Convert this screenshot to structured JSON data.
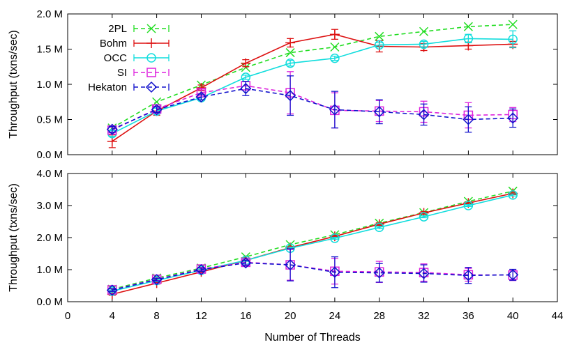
{
  "chart_data": [
    {
      "type": "line",
      "panel": "top",
      "ylabel": "Throughput (txns/sec)",
      "ylim": [
        0,
        2000000
      ],
      "yticks": [
        0,
        500000,
        1000000,
        1500000,
        2000000
      ],
      "ytick_labels": [
        "0.0 M",
        "0.5 M",
        "1.0 M",
        "1.5 M",
        "2.0 M"
      ],
      "xlim": [
        0,
        44
      ],
      "x": [
        4,
        8,
        12,
        16,
        20,
        24,
        28,
        32,
        36,
        40
      ],
      "grid": false,
      "legend_position": "top-left",
      "series": [
        {
          "name": "2PL",
          "color": "#22dd22",
          "dash": "dashed",
          "marker": "x",
          "values": [
            380000,
            750000,
            990000,
            1240000,
            1450000,
            1530000,
            1680000,
            1750000,
            1820000,
            1850000
          ],
          "errors": [
            0,
            0,
            0,
            0,
            0,
            0,
            0,
            0,
            0,
            0
          ]
        },
        {
          "name": "Bohm",
          "color": "#dd1111",
          "dash": "solid",
          "marker": "plus",
          "values": [
            190000,
            620000,
            950000,
            1300000,
            1590000,
            1710000,
            1540000,
            1530000,
            1550000,
            1570000
          ],
          "errors": [
            90000,
            60000,
            40000,
            50000,
            60000,
            70000,
            80000,
            50000,
            50000,
            40000
          ]
        },
        {
          "name": "OCC",
          "color": "#11dddd",
          "dash": "solid",
          "marker": "circle",
          "values": [
            300000,
            620000,
            810000,
            1100000,
            1300000,
            1370000,
            1560000,
            1570000,
            1650000,
            1640000
          ],
          "errors": [
            40000,
            40000,
            30000,
            30000,
            40000,
            30000,
            30000,
            40000,
            60000,
            120000
          ]
        },
        {
          "name": "SI",
          "color": "#dd22dd",
          "dash": "dashed",
          "marker": "square",
          "values": [
            350000,
            650000,
            880000,
            980000,
            880000,
            630000,
            620000,
            610000,
            560000,
            570000
          ],
          "errors": [
            40000,
            40000,
            40000,
            60000,
            300000,
            250000,
            150000,
            150000,
            180000,
            100000
          ]
        },
        {
          "name": "Hekaton",
          "color": "#1111cc",
          "dash": "dashed",
          "marker": "diamond",
          "values": [
            360000,
            640000,
            820000,
            940000,
            840000,
            640000,
            610000,
            570000,
            500000,
            520000
          ],
          "errors": [
            40000,
            40000,
            40000,
            100000,
            280000,
            260000,
            170000,
            150000,
            180000,
            130000
          ]
        }
      ]
    },
    {
      "type": "line",
      "panel": "bottom",
      "ylabel": "Throughput (txns/sec)",
      "xlabel": "Number of Threads",
      "ylim": [
        0,
        4000000
      ],
      "yticks": [
        0,
        1000000,
        2000000,
        3000000,
        4000000
      ],
      "ytick_labels": [
        "0.0 M",
        "1.0 M",
        "2.0 M",
        "3.0 M",
        "4.0 M"
      ],
      "xlim": [
        0,
        44
      ],
      "xticks": [
        0,
        4,
        8,
        12,
        16,
        20,
        24,
        28,
        32,
        36,
        40,
        44
      ],
      "xtick_labels": [
        "0",
        "4",
        "8",
        "12",
        "16",
        "20",
        "24",
        "28",
        "32",
        "36",
        "40",
        "44"
      ],
      "x": [
        4,
        8,
        12,
        16,
        20,
        24,
        28,
        32,
        36,
        40
      ],
      "grid": false,
      "series": [
        {
          "name": "2PL",
          "color": "#22dd22",
          "dash": "dashed",
          "marker": "x",
          "values": [
            390000,
            740000,
            1050000,
            1400000,
            1780000,
            2090000,
            2450000,
            2780000,
            3130000,
            3450000
          ],
          "errors": [
            0,
            0,
            0,
            0,
            0,
            0,
            0,
            0,
            0,
            0
          ]
        },
        {
          "name": "Bohm",
          "color": "#dd1111",
          "dash": "solid",
          "marker": "plus",
          "values": [
            230000,
            580000,
            930000,
            1290000,
            1690000,
            2040000,
            2420000,
            2770000,
            3080000,
            3380000
          ],
          "errors": [
            30000,
            30000,
            30000,
            30000,
            30000,
            40000,
            40000,
            40000,
            40000,
            40000
          ]
        },
        {
          "name": "OCC",
          "color": "#11dddd",
          "dash": "solid",
          "marker": "circle",
          "values": [
            330000,
            660000,
            980000,
            1290000,
            1670000,
            1980000,
            2320000,
            2650000,
            3000000,
            3330000
          ],
          "errors": [
            30000,
            30000,
            30000,
            30000,
            30000,
            30000,
            30000,
            30000,
            30000,
            30000
          ]
        },
        {
          "name": "SI",
          "color": "#dd22dd",
          "dash": "dashed",
          "marker": "square",
          "values": [
            370000,
            700000,
            1020000,
            1230000,
            1150000,
            950000,
            930000,
            910000,
            840000,
            830000
          ],
          "errors": [
            40000,
            40000,
            50000,
            80000,
            480000,
            400000,
            330000,
            270000,
            200000,
            170000
          ]
        },
        {
          "name": "Hekaton",
          "color": "#1111cc",
          "dash": "dashed",
          "marker": "diamond",
          "values": [
            360000,
            690000,
            1000000,
            1210000,
            1150000,
            920000,
            900000,
            880000,
            820000,
            840000
          ],
          "errors": [
            40000,
            40000,
            50000,
            80000,
            500000,
            480000,
            290000,
            270000,
            250000,
            170000
          ]
        }
      ]
    }
  ]
}
